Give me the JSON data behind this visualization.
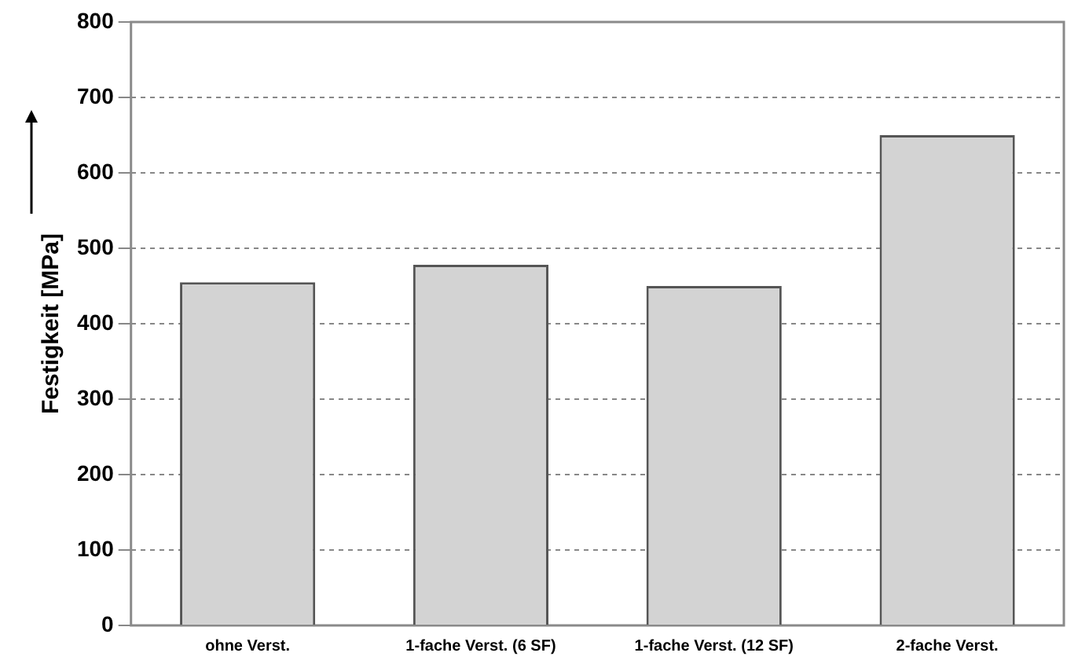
{
  "chart_data": {
    "type": "bar",
    "ylabel": "Festigkeit [MPa]",
    "categories": [
      "ohne Verst.",
      "1-fache Verst. (6 SF)",
      "1-fache Verst. (12 SF)",
      "2-fache Verst."
    ],
    "values": [
      455,
      478,
      450,
      650
    ],
    "color": "#d3d3d3",
    "ylim": [
      0,
      800
    ],
    "yticks": [
      0,
      100,
      200,
      300,
      400,
      500,
      600,
      700,
      800
    ],
    "grid": "y"
  }
}
